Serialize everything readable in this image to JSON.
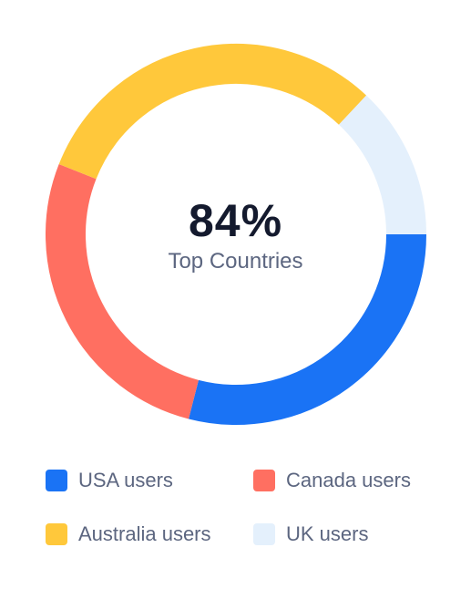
{
  "chart_data": {
    "type": "pie",
    "variant": "donut",
    "categories": [
      "USA users",
      "Canada users",
      "Australia users",
      "UK users"
    ],
    "values": [
      29,
      27,
      31,
      13
    ],
    "colors": [
      "#1a73f5",
      "#ff6f61",
      "#ffc83b",
      "#e4f0fc"
    ],
    "center_value": "84%",
    "center_label": "Top Countries",
    "legend_position": "bottom"
  }
}
